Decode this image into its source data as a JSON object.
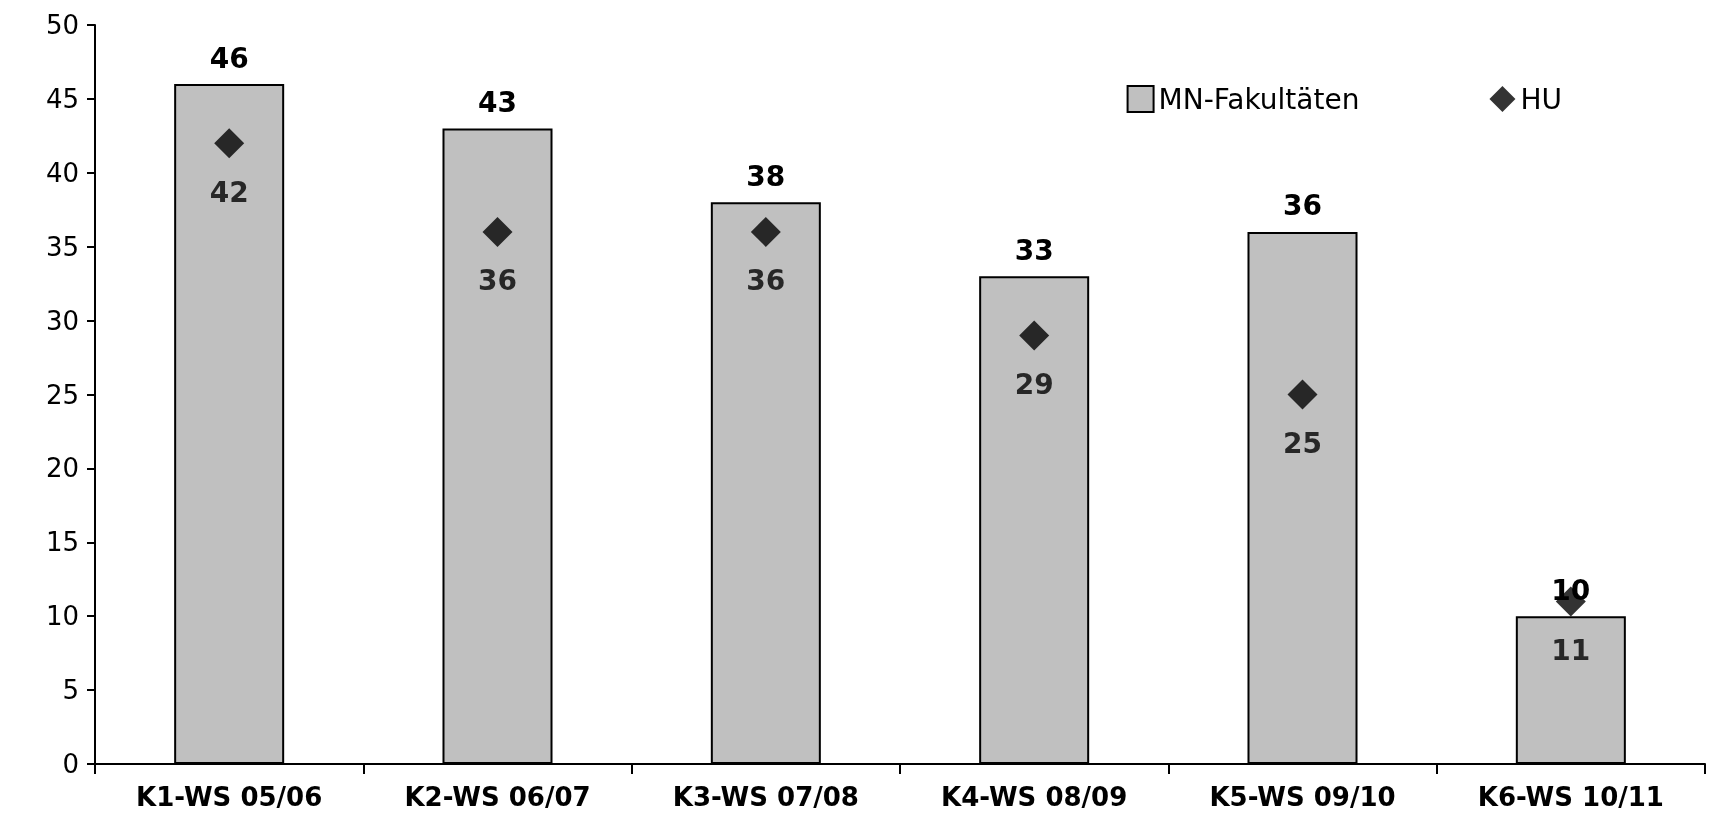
{
  "chart_data": {
    "type": "bar",
    "categories": [
      "K1-WS 05/06",
      "K2-WS 06/07",
      "K3-WS 07/08",
      "K4-WS 08/09",
      "K5-WS 09/10",
      "K6-WS 10/11"
    ],
    "series": [
      {
        "name": "MN-Fakultäten",
        "color": "#c0c0c0",
        "values": [
          46,
          43,
          38,
          33,
          36,
          10
        ]
      },
      {
        "name": "HU",
        "type": "scatter",
        "color": "#000000",
        "values": [
          42,
          36,
          36,
          29,
          25,
          11
        ]
      }
    ],
    "ylim": [
      0,
      50
    ],
    "yticks": [
      0,
      5,
      10,
      15,
      20,
      25,
      30,
      35,
      40,
      45,
      50
    ],
    "grid": false,
    "legend": "top right",
    "marker": "diamond",
    "data_labels": true
  }
}
